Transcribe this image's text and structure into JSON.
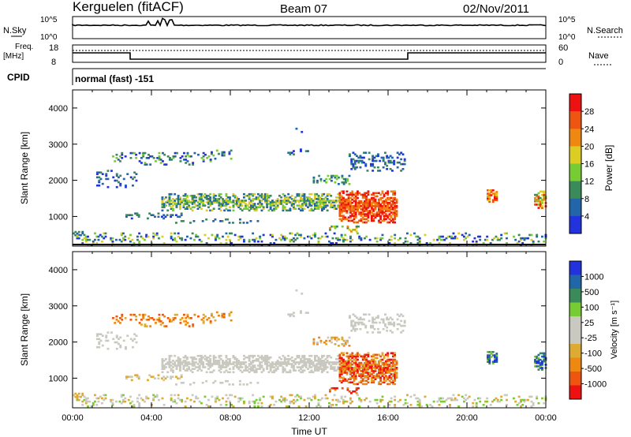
{
  "header": {
    "station": "Kerguelen (fitACF)",
    "beam": "Beam 07",
    "date": "02/Nov/2011"
  },
  "panels": {
    "nsky": {
      "label": "N.Sky",
      "ticks": [
        "10^5",
        "10^0"
      ]
    },
    "nsearch": {
      "label": "N.Search",
      "ticks": [
        "10^5",
        "10^0"
      ]
    },
    "freq": {
      "label_line1": "Freq.",
      "label_line2": "[MHz]",
      "ticks": [
        "18",
        "8"
      ]
    },
    "nave": {
      "label": "Nave",
      "ticks": [
        "60",
        "0"
      ]
    },
    "cpid": {
      "label": "CPID",
      "value": "normal (fast) -151"
    }
  },
  "colors": {
    "power_scale": [
      "#2233dd",
      "#2266aa",
      "#3a8a5a",
      "#77cc33",
      "#ddcc22",
      "#ee8811",
      "#ee5511",
      "#ee1111"
    ],
    "velocity_scale": [
      "#ee1111",
      "#ee5511",
      "#ee8811",
      "#ddaa33",
      "#c9c9c0",
      "#c9c9c0",
      "#77cc33",
      "#3a8a5a",
      "#2266aa",
      "#2233dd"
    ]
  },
  "chart_data": [
    {
      "type": "heatmap",
      "title": "Power",
      "xlabel": "",
      "ylabel": "Slant Range [km]",
      "xlim": [
        "00:00",
        "24:00"
      ],
      "ylim": [
        180,
        4500
      ],
      "y_ticks": [
        "1000",
        "2000",
        "3000",
        "4000"
      ],
      "colorbar": {
        "label": "Power [dB]",
        "ticks": [
          "4",
          "8",
          "12",
          "16",
          "20",
          "24",
          "28"
        ],
        "range": [
          0,
          30
        ]
      },
      "echo_regions": [
        {
          "t_start_h": 4.5,
          "t_end_h": 13.5,
          "range_km": [
            1150,
            1650
          ],
          "power_db": "8-20"
        },
        {
          "t_start_h": 13.5,
          "t_end_h": 16.5,
          "range_km": [
            800,
            1800
          ],
          "power_db": "20-30"
        },
        {
          "t_start_h": 21.0,
          "t_end_h": 21.5,
          "range_km": [
            1400,
            1700
          ],
          "power_db": "16-28"
        },
        {
          "t_start_h": 23.5,
          "t_end_h": 24.0,
          "range_km": [
            1200,
            1700
          ],
          "power_db": "8-28"
        },
        {
          "t_start_h": 0.0,
          "t_end_h": 24.0,
          "range_km": [
            180,
            600
          ],
          "power_db": "4-20"
        }
      ]
    },
    {
      "type": "heatmap",
      "title": "Velocity",
      "xlabel": "Time UT",
      "ylabel": "Slant Range [km]",
      "xlim": [
        "00:00",
        "24:00"
      ],
      "ylim": [
        180,
        4500
      ],
      "x_ticks": [
        "00:00",
        "04:00",
        "08:00",
        "12:00",
        "16:00",
        "20:00",
        "00:00"
      ],
      "y_ticks": [
        "1000",
        "2000",
        "3000",
        "4000"
      ],
      "colorbar": {
        "label": "Velocity [m s⁻¹]",
        "ticks": [
          "1000",
          "500",
          "100",
          "25",
          "-25",
          "-100",
          "-500",
          "-1000"
        ]
      },
      "echo_regions": [
        {
          "t_start_h": 4.5,
          "t_end_h": 13.5,
          "range_km": [
            1150,
            1650
          ],
          "velocity": "-25 to 25 (ground scatter)"
        },
        {
          "t_start_h": 14.0,
          "t_end_h": 16.5,
          "range_km": [
            800,
            1700
          ],
          "velocity": "-1000 to -100"
        },
        {
          "t_start_h": 21.0,
          "t_end_h": 21.5,
          "range_km": [
            1300,
            1700
          ],
          "velocity": "100 to 1000"
        },
        {
          "t_start_h": 23.5,
          "t_end_h": 24.0,
          "range_km": [
            1200,
            1700
          ],
          "velocity": "100 to 1000"
        }
      ]
    }
  ]
}
